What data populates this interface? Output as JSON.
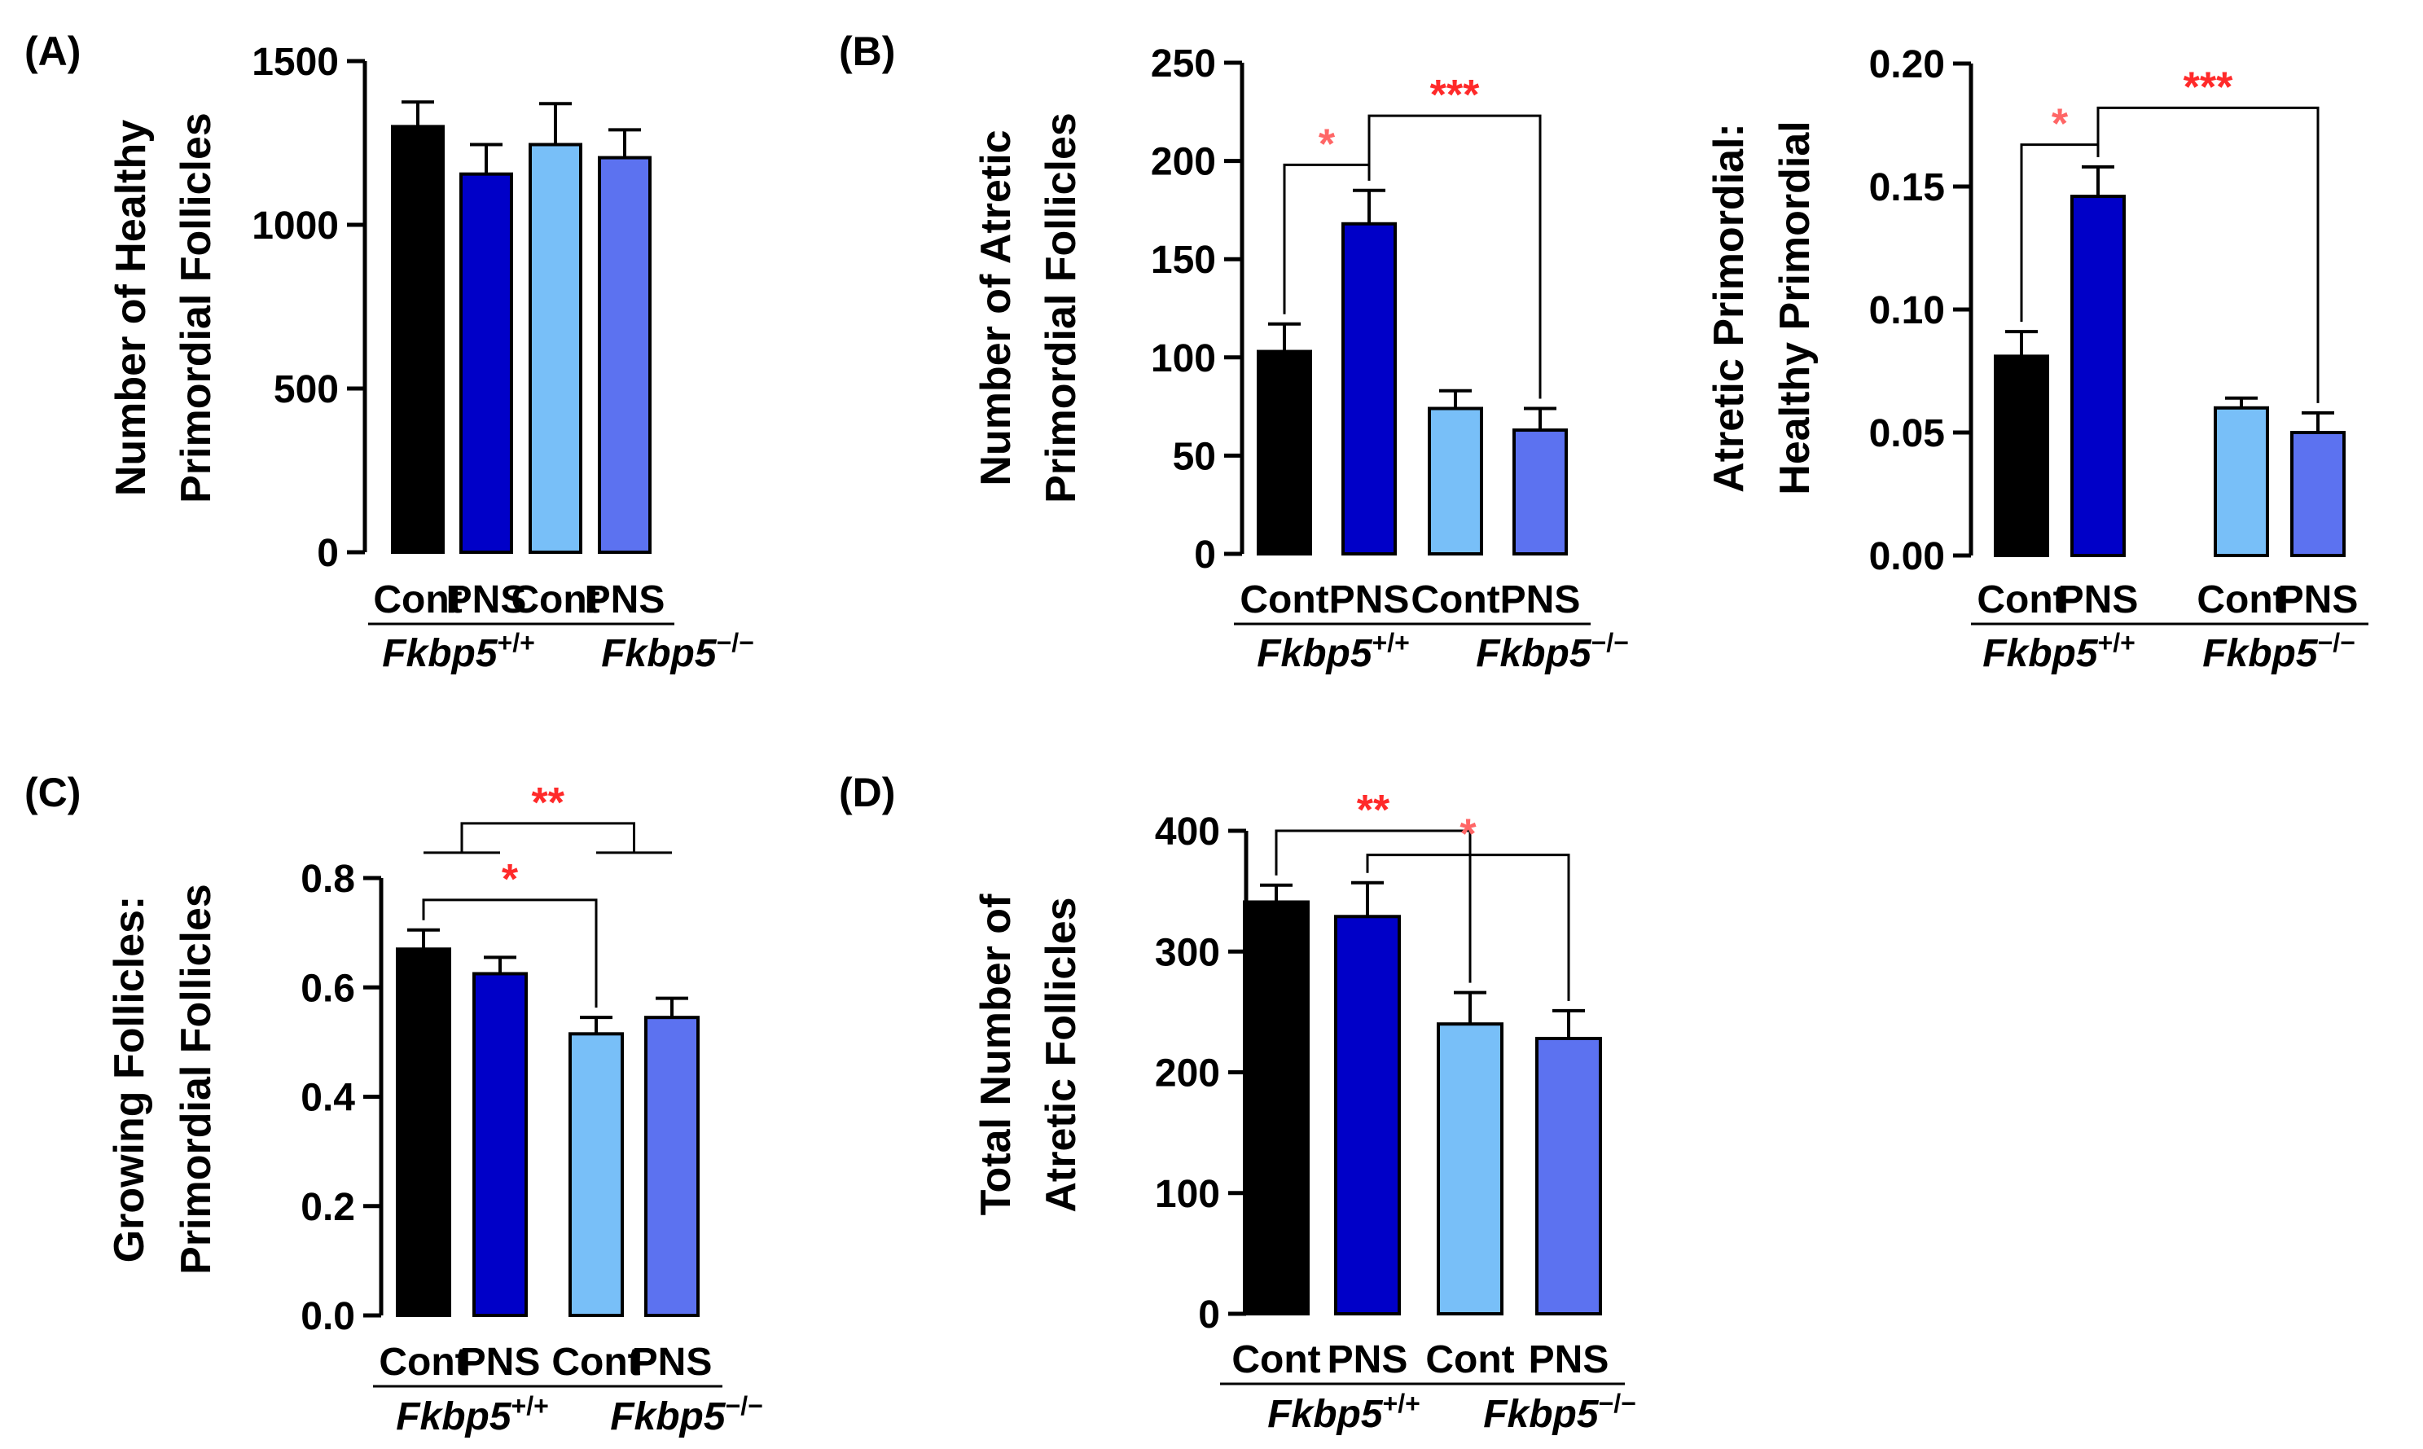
{
  "figure": {
    "description_free": true
  },
  "chart_data": [
    {
      "panel_label": "(A)",
      "type": "bar",
      "categories": [
        "Cont",
        "PNS",
        "Cont",
        "PNS"
      ],
      "groups": [
        {
          "label": "Fkbp5",
          "superscript": "+/+"
        },
        {
          "label": "Fkbp5",
          "superscript": "−/−"
        }
      ],
      "ylabel_lines": [
        "Number of Healthy",
        "Primordial Follicles"
      ],
      "ylim": [
        0,
        1500
      ],
      "yticks": [
        0,
        500,
        1000,
        1500
      ],
      "tick_labels": [
        "0",
        "500",
        "1000",
        "1500"
      ],
      "values": [
        1300,
        1155,
        1245,
        1205
      ],
      "errors": [
        75,
        90,
        125,
        85
      ],
      "colors": [
        "#000000",
        "#0000c8",
        "#78bff8",
        "#5c72f0"
      ],
      "significance": []
    },
    {
      "panel_label": "(B)",
      "type": "bar",
      "categories": [
        "Cont",
        "PNS",
        "Cont",
        "PNS"
      ],
      "groups": [
        {
          "label": "Fkbp5",
          "superscript": "+/+"
        },
        {
          "label": "Fkbp5",
          "superscript": "−/−"
        }
      ],
      "ylabel_lines": [
        "Number of Atretic",
        "Primordial Follicles"
      ],
      "ylim": [
        0,
        250
      ],
      "yticks": [
        0,
        50,
        100,
        150,
        200,
        250
      ],
      "tick_labels": [
        "0",
        "50",
        "100",
        "150",
        "200",
        "250"
      ],
      "values": [
        103,
        168,
        74,
        63
      ],
      "errors": [
        14,
        17,
        9,
        11
      ],
      "colors": [
        "#000000",
        "#0000c8",
        "#78bff8",
        "#5c72f0"
      ],
      "significance": [
        {
          "from": 0,
          "to": 1,
          "label": "*",
          "y": 198,
          "color": "#ff6666"
        },
        {
          "from": 1,
          "to": 3,
          "label": "***",
          "y": 223,
          "color": "#ff2a2a"
        }
      ]
    },
    {
      "panel_label": "",
      "type": "bar",
      "categories": [
        "Cont",
        "PNS",
        "Cont",
        "PNS"
      ],
      "groups": [
        {
          "label": "Fkbp5",
          "superscript": "+/+"
        },
        {
          "label": "Fkbp5",
          "superscript": "−/−"
        }
      ],
      "ylabel_lines": [
        "Atretic Primordial:",
        "Healthy Primordial"
      ],
      "ylim": [
        0,
        0.2
      ],
      "yticks": [
        0,
        0.05,
        0.1,
        0.15,
        0.2
      ],
      "tick_labels": [
        "0.00",
        "0.05",
        "0.10",
        "0.15",
        "0.20"
      ],
      "values": [
        0.081,
        0.146,
        0.06,
        0.05
      ],
      "errors": [
        0.01,
        0.012,
        0.004,
        0.008
      ],
      "colors": [
        "#000000",
        "#0000c8",
        "#78bff8",
        "#5c72f0"
      ],
      "significance": [
        {
          "from": 0,
          "to": 1,
          "label": "*",
          "y": 0.167,
          "color": "#ff6666"
        },
        {
          "from": 1,
          "to": 3,
          "label": "***",
          "y": 0.182,
          "color": "#ff2a2a"
        }
      ]
    },
    {
      "panel_label": "(C)",
      "type": "bar",
      "categories": [
        "Cont",
        "PNS",
        "Cont",
        "PNS"
      ],
      "groups": [
        {
          "label": "Fkbp5",
          "superscript": "+/+"
        },
        {
          "label": "Fkbp5",
          "superscript": "−/−"
        }
      ],
      "ylabel_lines": [
        "Growing Follicles:",
        "Primordial Follicles"
      ],
      "ylim": [
        0,
        0.8
      ],
      "yticks": [
        0,
        0.2,
        0.4,
        0.6,
        0.8
      ],
      "tick_labels": [
        "0.0",
        "0.2",
        "0.4",
        "0.6",
        "0.8"
      ],
      "values": [
        0.67,
        0.625,
        0.515,
        0.545
      ],
      "errors": [
        0.035,
        0.03,
        0.03,
        0.035
      ],
      "colors": [
        "#000000",
        "#0000c8",
        "#78bff8",
        "#5c72f0"
      ],
      "significance": [
        {
          "from": 0,
          "to": 2,
          "label": "*",
          "y": 0.76,
          "color": "#ff2a2a"
        },
        {
          "group_from": [
            0,
            1
          ],
          "group_to": [
            2,
            3
          ],
          "label": "**",
          "y": 0.9,
          "color": "#ff2a2a"
        }
      ]
    },
    {
      "panel_label": "(D)",
      "type": "bar",
      "categories": [
        "Cont",
        "PNS",
        "Cont",
        "PNS"
      ],
      "groups": [
        {
          "label": "Fkbp5",
          "superscript": "+/+"
        },
        {
          "label": "Fkbp5",
          "superscript": "−/−"
        }
      ],
      "ylabel_lines": [
        "Total Number of",
        "Atretic Follicles"
      ],
      "ylim": [
        0,
        400
      ],
      "yticks": [
        0,
        100,
        200,
        300,
        400
      ],
      "tick_labels": [
        "0",
        "100",
        "200",
        "300",
        "400"
      ],
      "values": [
        341,
        329,
        240,
        228
      ],
      "errors": [
        14,
        28,
        26,
        23
      ],
      "colors": [
        "#000000",
        "#0000c8",
        "#78bff8",
        "#5c72f0"
      ],
      "significance": [
        {
          "from": 0,
          "to": 2,
          "label": "**",
          "y": 400,
          "color": "#ff2a2a"
        },
        {
          "from": 1,
          "to": 3,
          "label": "*",
          "y": 380,
          "color": "#ff6666"
        }
      ]
    }
  ]
}
